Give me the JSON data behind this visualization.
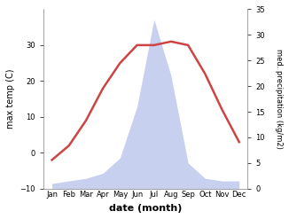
{
  "months": [
    "Jan",
    "Feb",
    "Mar",
    "Apr",
    "May",
    "Jun",
    "Jul",
    "Aug",
    "Sep",
    "Oct",
    "Nov",
    "Dec"
  ],
  "x_positions": [
    0,
    1,
    2,
    3,
    4,
    5,
    6,
    7,
    8,
    9,
    10,
    11
  ],
  "temperature": [
    -2,
    2,
    9,
    18,
    25,
    30,
    30,
    31,
    30,
    22,
    12,
    3
  ],
  "precipitation": [
    1,
    1.5,
    2,
    3,
    6,
    16,
    33,
    22,
    5,
    2,
    1.5,
    1.5
  ],
  "temp_color": "#cc4444",
  "precip_fill_color": "#c8d0f0",
  "precip_edge_color": "#c8d0f0",
  "ylabel_left": "max temp (C)",
  "ylabel_right": "med. precipitation (kg/m2)",
  "xlabel": "date (month)",
  "ylim_left": [
    -10,
    40
  ],
  "ylim_right": [
    0,
    35
  ],
  "yticks_left": [
    -10,
    0,
    10,
    20,
    30
  ],
  "yticks_right": [
    0,
    5,
    10,
    15,
    20,
    25,
    30,
    35
  ],
  "background_color": "#ffffff",
  "temp_linewidth": 1.8,
  "ylabel_left_fontsize": 7,
  "ylabel_right_fontsize": 6,
  "xlabel_fontsize": 8,
  "tick_fontsize": 6
}
